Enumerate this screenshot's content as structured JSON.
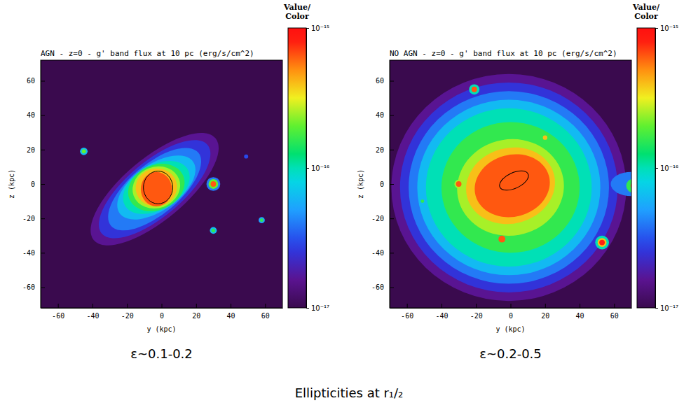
{
  "chart_data": [
    {
      "type": "heatmap",
      "title": "AGN - z=0 - g' band flux at 10 pc (erg/s/cm^2)",
      "x_label": "y (kpc)",
      "y_label": "z (kpc)",
      "xlim": [
        -70,
        70
      ],
      "ylim": [
        -72,
        72
      ],
      "xticks": [
        -60,
        -40,
        -20,
        0,
        20,
        40,
        60
      ],
      "yticks": [
        -60,
        -40,
        -20,
        0,
        20,
        40,
        60
      ],
      "colorbar": {
        "title": [
          "Value/",
          "Color"
        ],
        "range": [
          1e-17,
          1e-15
        ],
        "log": true,
        "ticks": [
          {
            "value": 1e-17,
            "label": "10⁻¹⁷"
          },
          {
            "value": 1e-16,
            "label": "10⁻¹⁶"
          },
          {
            "value": 1e-15,
            "label": "10⁻¹⁵"
          }
        ]
      },
      "isophotes": [
        {
          "flux": 1.6e-17,
          "cx": -4,
          "cy": -3,
          "rx": 46,
          "ry": 18,
          "angle": 40
        },
        {
          "flux": 2.5e-17,
          "cx": -4,
          "cy": -3,
          "rx": 40,
          "ry": 16,
          "angle": 40
        },
        {
          "flux": 4e-17,
          "cx": -4,
          "cy": -3,
          "rx": 33,
          "ry": 14.5,
          "angle": 40
        },
        {
          "flux": 6.3e-17,
          "cx": -3,
          "cy": -2,
          "rx": 26,
          "ry": 13.5,
          "angle": 35
        },
        {
          "flux": 1e-16,
          "cx": -3,
          "cy": -2,
          "rx": 21,
          "ry": 13,
          "angle": 30
        },
        {
          "flux": 1.6e-16,
          "cx": -3,
          "cy": -2,
          "rx": 17,
          "ry": 13,
          "angle": 25
        },
        {
          "flux": 2.5e-16,
          "cx": -3,
          "cy": -2,
          "rx": 14,
          "ry": 12,
          "angle": 20
        },
        {
          "flux": 4e-16,
          "cx": -3,
          "cy": -2,
          "rx": 12,
          "ry": 11,
          "angle": 10
        },
        {
          "flux": 6.3e-16,
          "cx": -3,
          "cy": -3,
          "rx": 9,
          "ry": 10,
          "angle": 0
        },
        {
          "flux": 4e-17,
          "cx": 30,
          "cy": 0,
          "rx": 4,
          "ry": 4,
          "angle": 0
        },
        {
          "flux": 2e-16,
          "cx": 30,
          "cy": 0,
          "rx": 2.8,
          "ry": 2.8,
          "angle": 0
        },
        {
          "flux": 6.3e-16,
          "cx": 30,
          "cy": 0,
          "rx": 1.6,
          "ry": 1.6,
          "angle": 0
        },
        {
          "flux": 6.3e-17,
          "cx": -45,
          "cy": 19,
          "rx": 2.2,
          "ry": 2.2,
          "angle": 0
        },
        {
          "flux": 2e-16,
          "cx": -45,
          "cy": 19,
          "rx": 1.2,
          "ry": 1.2,
          "angle": 0
        },
        {
          "flux": 6.3e-17,
          "cx": 30,
          "cy": -27,
          "rx": 2,
          "ry": 2,
          "angle": 0
        },
        {
          "flux": 1.6e-16,
          "cx": 30,
          "cy": -27,
          "rx": 1.1,
          "ry": 1.1,
          "angle": 0
        },
        {
          "flux": 5e-17,
          "cx": 58,
          "cy": -21,
          "rx": 1.8,
          "ry": 1.8,
          "angle": 0
        },
        {
          "flux": 1.6e-16,
          "cx": 58,
          "cy": -21,
          "rx": 1,
          "ry": 1,
          "angle": 0
        },
        {
          "flux": 3e-17,
          "cx": 49,
          "cy": 16,
          "rx": 1.2,
          "ry": 1.2,
          "angle": 0
        }
      ],
      "half_light_contour": {
        "cx": -2,
        "cy": -2,
        "rx": 8.5,
        "ry": 9.5,
        "angle": 0
      },
      "annotation": "ε~0.1-0.2"
    },
    {
      "type": "heatmap",
      "title": "NO AGN - z=0 - g' band flux at 10 pc (erg/s/cm^2)",
      "x_label": "y (kpc)",
      "y_label": "z (kpc)",
      "xlim": [
        -70,
        70
      ],
      "ylim": [
        -72,
        72
      ],
      "xticks": [
        -60,
        -40,
        -20,
        0,
        20,
        40,
        60
      ],
      "yticks": [
        -60,
        -40,
        -20,
        0,
        20,
        40,
        60
      ],
      "colorbar": {
        "title": [
          "Value/",
          "Color"
        ],
        "range": [
          1e-17,
          1e-15
        ],
        "log": true,
        "ticks": [
          {
            "value": 1e-17,
            "label": "10⁻¹⁷"
          },
          {
            "value": 1e-16,
            "label": "10⁻¹⁶"
          },
          {
            "value": 1e-15,
            "label": "10⁻¹⁵"
          }
        ]
      },
      "isophotes": [
        {
          "flux": 1.6e-17,
          "cx": -1,
          "cy": -2,
          "rx": 68,
          "ry": 66,
          "angle": 0
        },
        {
          "flux": 2.5e-17,
          "cx": -1,
          "cy": -2,
          "rx": 63,
          "ry": 61,
          "angle": 0
        },
        {
          "flux": 4e-17,
          "cx": -1,
          "cy": -2,
          "rx": 58,
          "ry": 56,
          "angle": 0
        },
        {
          "flux": 6.3e-17,
          "cx": -1,
          "cy": -2,
          "rx": 53,
          "ry": 51,
          "angle": 0
        },
        {
          "flux": 1e-16,
          "cx": -1,
          "cy": -2,
          "rx": 48,
          "ry": 46,
          "angle": 0
        },
        {
          "flux": 1.6e-16,
          "cx": 0,
          "cy": -2,
          "rx": 40,
          "ry": 38,
          "angle": 0
        },
        {
          "flux": 2.5e-16,
          "cx": 0,
          "cy": -2,
          "rx": 31,
          "ry": 28,
          "angle": 10
        },
        {
          "flux": 4e-16,
          "cx": 0,
          "cy": -1,
          "rx": 26,
          "ry": 22,
          "angle": 15
        },
        {
          "flux": 6.3e-16,
          "cx": 1,
          "cy": -1,
          "rx": 22,
          "ry": 18,
          "angle": 15
        },
        {
          "flux": 4e-17,
          "cx": 70,
          "cy": 0,
          "rx": 12,
          "ry": 7,
          "angle": 0
        },
        {
          "flux": 1.6e-16,
          "cx": 71,
          "cy": -1,
          "rx": 4,
          "ry": 4,
          "angle": 0
        },
        {
          "flux": 6.3e-16,
          "cx": 72,
          "cy": -1,
          "rx": 2.5,
          "ry": 2.5,
          "angle": 0
        },
        {
          "flux": 1e-16,
          "cx": -21,
          "cy": 55,
          "rx": 3,
          "ry": 3,
          "angle": 0
        },
        {
          "flux": 6.3e-16,
          "cx": -21,
          "cy": 55,
          "rx": 1.6,
          "ry": 1.6,
          "angle": 0
        },
        {
          "flux": 2.5e-16,
          "cx": -30,
          "cy": 0,
          "rx": 2.5,
          "ry": 2.5,
          "angle": 0
        },
        {
          "flux": 6.3e-16,
          "cx": -30,
          "cy": 0,
          "rx": 1.6,
          "ry": 1.6,
          "angle": 0
        },
        {
          "flux": 6.3e-16,
          "cx": -5,
          "cy": -32,
          "rx": 2,
          "ry": 2,
          "angle": 0
        },
        {
          "flux": 4e-16,
          "cx": 20,
          "cy": 27,
          "rx": 1.3,
          "ry": 1.3,
          "angle": 0
        },
        {
          "flux": 1e-16,
          "cx": 53,
          "cy": -34,
          "rx": 4,
          "ry": 4,
          "angle": 0
        },
        {
          "flux": 4e-16,
          "cx": 53,
          "cy": -34,
          "rx": 2.6,
          "ry": 2.6,
          "angle": 0
        },
        {
          "flux": 8e-16,
          "cx": 53,
          "cy": -34,
          "rx": 1.6,
          "ry": 1.6,
          "angle": 0
        },
        {
          "flux": 1.6e-16,
          "cx": -51,
          "cy": -10,
          "rx": 1,
          "ry": 1,
          "angle": 0
        }
      ],
      "half_light_contour": {
        "cx": 2,
        "cy": 2,
        "rx": 9,
        "ry": 4.5,
        "angle": 25
      },
      "annotation": "ε~0.2-0.5"
    }
  ],
  "caption": "Ellipticities at r₁/₂"
}
